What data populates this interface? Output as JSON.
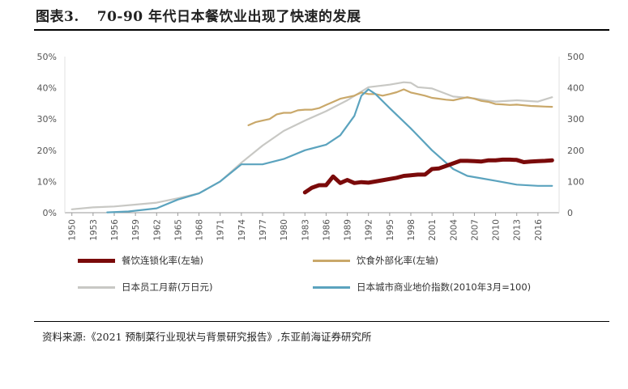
{
  "figure": {
    "number": "图表3.",
    "title": "70-90 年代日本餐饮业出现了快速的发展",
    "source": "资料来源:《2021 预制菜行业现状与背景研究报告》,东亚前海证券研究所"
  },
  "chart_data": {
    "type": "line",
    "x_ticks": [
      "1950",
      "1953",
      "1956",
      "1959",
      "1962",
      "1965",
      "1968",
      "1971",
      "1974",
      "1977",
      "1980",
      "1983",
      "1986",
      "1989",
      "1992",
      "1995",
      "1998",
      "2001",
      "2004",
      "2007",
      "2010",
      "2013",
      "2016"
    ],
    "xlim": [
      1949,
      2019
    ],
    "y_left": {
      "ticks": [
        "0%",
        "10%",
        "20%",
        "30%",
        "40%",
        "50%"
      ],
      "range": [
        0,
        50
      ]
    },
    "y_right": {
      "ticks": [
        "0",
        "100",
        "200",
        "300",
        "400",
        "500"
      ],
      "range": [
        0,
        500
      ]
    },
    "legend_position": "bottom",
    "series": [
      {
        "name": "餐饮连锁化率(左轴)",
        "axis": "left",
        "color": "#7a0a0a",
        "points": [
          [
            1983,
            6.5
          ],
          [
            1984,
            8
          ],
          [
            1985,
            8.8
          ],
          [
            1986,
            8.8
          ],
          [
            1987,
            11.6
          ],
          [
            1988,
            9.5
          ],
          [
            1989,
            10.5
          ],
          [
            1990,
            9.5
          ],
          [
            1991,
            9.8
          ],
          [
            1992,
            9.6
          ],
          [
            1993,
            10
          ],
          [
            1994,
            10.4
          ],
          [
            1995,
            10.8
          ],
          [
            1996,
            11.2
          ],
          [
            1997,
            11.8
          ],
          [
            1998,
            12
          ],
          [
            1999,
            12.2
          ],
          [
            2000,
            12.2
          ],
          [
            2001,
            14
          ],
          [
            2002,
            14.2
          ],
          [
            2003,
            15
          ],
          [
            2004,
            15.8
          ],
          [
            2005,
            16.6
          ],
          [
            2006,
            16.6
          ],
          [
            2007,
            16.5
          ],
          [
            2008,
            16.4
          ],
          [
            2009,
            16.8
          ],
          [
            2010,
            16.8
          ],
          [
            2011,
            17
          ],
          [
            2012,
            17
          ],
          [
            2013,
            16.9
          ],
          [
            2014,
            16.2
          ],
          [
            2015,
            16.4
          ],
          [
            2016,
            16.5
          ],
          [
            2017,
            16.6
          ],
          [
            2018,
            16.8
          ]
        ]
      },
      {
        "name": "饮食外部化率(左轴)",
        "axis": "left",
        "color": "#c9a86a",
        "points": [
          [
            1975,
            28
          ],
          [
            1976,
            29
          ],
          [
            1977,
            29.5
          ],
          [
            1978,
            30
          ],
          [
            1979,
            31.5
          ],
          [
            1980,
            32
          ],
          [
            1981,
            32
          ],
          [
            1982,
            32.8
          ],
          [
            1983,
            33
          ],
          [
            1984,
            33
          ],
          [
            1985,
            33.5
          ],
          [
            1986,
            34.5
          ],
          [
            1987,
            35.5
          ],
          [
            1988,
            36.5
          ],
          [
            1989,
            37
          ],
          [
            1990,
            37.5
          ],
          [
            1991,
            38.5
          ],
          [
            1992,
            38
          ],
          [
            1993,
            38
          ],
          [
            1994,
            37.5
          ],
          [
            1995,
            38
          ],
          [
            1996,
            38.6
          ],
          [
            1997,
            39.5
          ],
          [
            1998,
            38.5
          ],
          [
            1999,
            38
          ],
          [
            2000,
            37.5
          ],
          [
            2001,
            36.8
          ],
          [
            2002,
            36.5
          ],
          [
            2003,
            36.2
          ],
          [
            2004,
            36
          ],
          [
            2005,
            36.5
          ],
          [
            2006,
            37
          ],
          [
            2007,
            36.5
          ],
          [
            2008,
            35.8
          ],
          [
            2009,
            35.5
          ],
          [
            2010,
            34.8
          ],
          [
            2011,
            34.7
          ],
          [
            2012,
            34.5
          ],
          [
            2013,
            34.6
          ],
          [
            2014,
            34.4
          ],
          [
            2015,
            34.2
          ],
          [
            2016,
            34.1
          ],
          [
            2017,
            34
          ],
          [
            2018,
            33.9
          ]
        ]
      },
      {
        "name": "日本员工月薪(万日元)",
        "axis": "right",
        "color": "#c8c8c4",
        "points": [
          [
            1950,
            11
          ],
          [
            1953,
            17
          ],
          [
            1956,
            20
          ],
          [
            1959,
            26
          ],
          [
            1962,
            32
          ],
          [
            1965,
            46
          ],
          [
            1968,
            62
          ],
          [
            1971,
            100
          ],
          [
            1974,
            160
          ],
          [
            1977,
            215
          ],
          [
            1980,
            262
          ],
          [
            1983,
            295
          ],
          [
            1986,
            325
          ],
          [
            1989,
            360
          ],
          [
            1992,
            402
          ],
          [
            1995,
            410
          ],
          [
            1997,
            418
          ],
          [
            1998,
            416
          ],
          [
            1999,
            402
          ],
          [
            2001,
            398
          ],
          [
            2004,
            372
          ],
          [
            2007,
            366
          ],
          [
            2010,
            356
          ],
          [
            2013,
            360
          ],
          [
            2016,
            356
          ],
          [
            2018,
            370
          ]
        ]
      },
      {
        "name": "日本城市商业地价指数(2010年3月=100)",
        "axis": "right",
        "color": "#5ba3be",
        "points": [
          [
            1955,
            1
          ],
          [
            1958,
            4
          ],
          [
            1962,
            14
          ],
          [
            1965,
            42
          ],
          [
            1968,
            62
          ],
          [
            1971,
            100
          ],
          [
            1974,
            155
          ],
          [
            1977,
            155
          ],
          [
            1980,
            172
          ],
          [
            1983,
            200
          ],
          [
            1986,
            218
          ],
          [
            1988,
            248
          ],
          [
            1990,
            310
          ],
          [
            1991,
            375
          ],
          [
            1992,
            395
          ],
          [
            1993,
            380
          ],
          [
            1995,
            335
          ],
          [
            1998,
            270
          ],
          [
            2001,
            200
          ],
          [
            2004,
            140
          ],
          [
            2006,
            118
          ],
          [
            2008,
            110
          ],
          [
            2010,
            102
          ],
          [
            2013,
            90
          ],
          [
            2016,
            86
          ],
          [
            2018,
            86
          ]
        ]
      }
    ]
  }
}
